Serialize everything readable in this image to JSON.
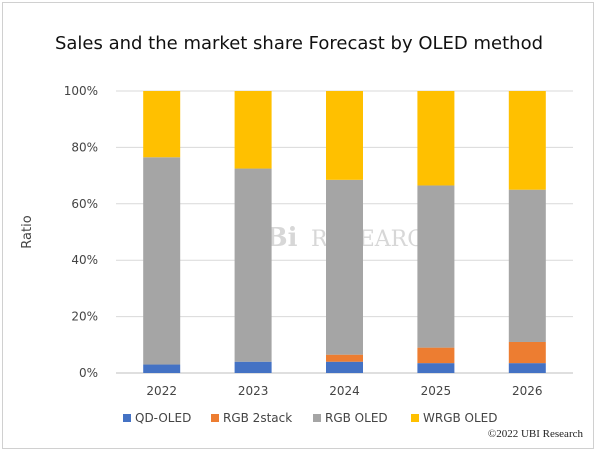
{
  "chart_data": {
    "type": "bar",
    "stacked": true,
    "title": "Sales and the market share Forecast by OLED method",
    "ylabel": "Ratio",
    "xlabel": "",
    "ylim": [
      0,
      100
    ],
    "yticks": [
      "0%",
      "20%",
      "40%",
      "60%",
      "80%",
      "100%"
    ],
    "categories": [
      "2022",
      "2023",
      "2024",
      "2025",
      "2026"
    ],
    "series": [
      {
        "name": "QD-OLED",
        "color": "#4472c4",
        "values": [
          3,
          4,
          4,
          3.5,
          3.5
        ]
      },
      {
        "name": "RGB 2stack",
        "color": "#ed7d31",
        "values": [
          0,
          0,
          2.5,
          5.5,
          7.5
        ]
      },
      {
        "name": "RGB OLED",
        "color": "#a5a5a5",
        "values": [
          73.5,
          68.5,
          62,
          57.5,
          54
        ]
      },
      {
        "name": "WRGB OLED",
        "color": "#ffc000",
        "values": [
          23.5,
          27.5,
          31.5,
          33.5,
          35
        ]
      }
    ],
    "grid": true,
    "legend_position": "bottom"
  },
  "watermark": {
    "text_1": "UBi",
    "text_2": "RESEARCH"
  },
  "copyright": "©2022 UBI Research"
}
